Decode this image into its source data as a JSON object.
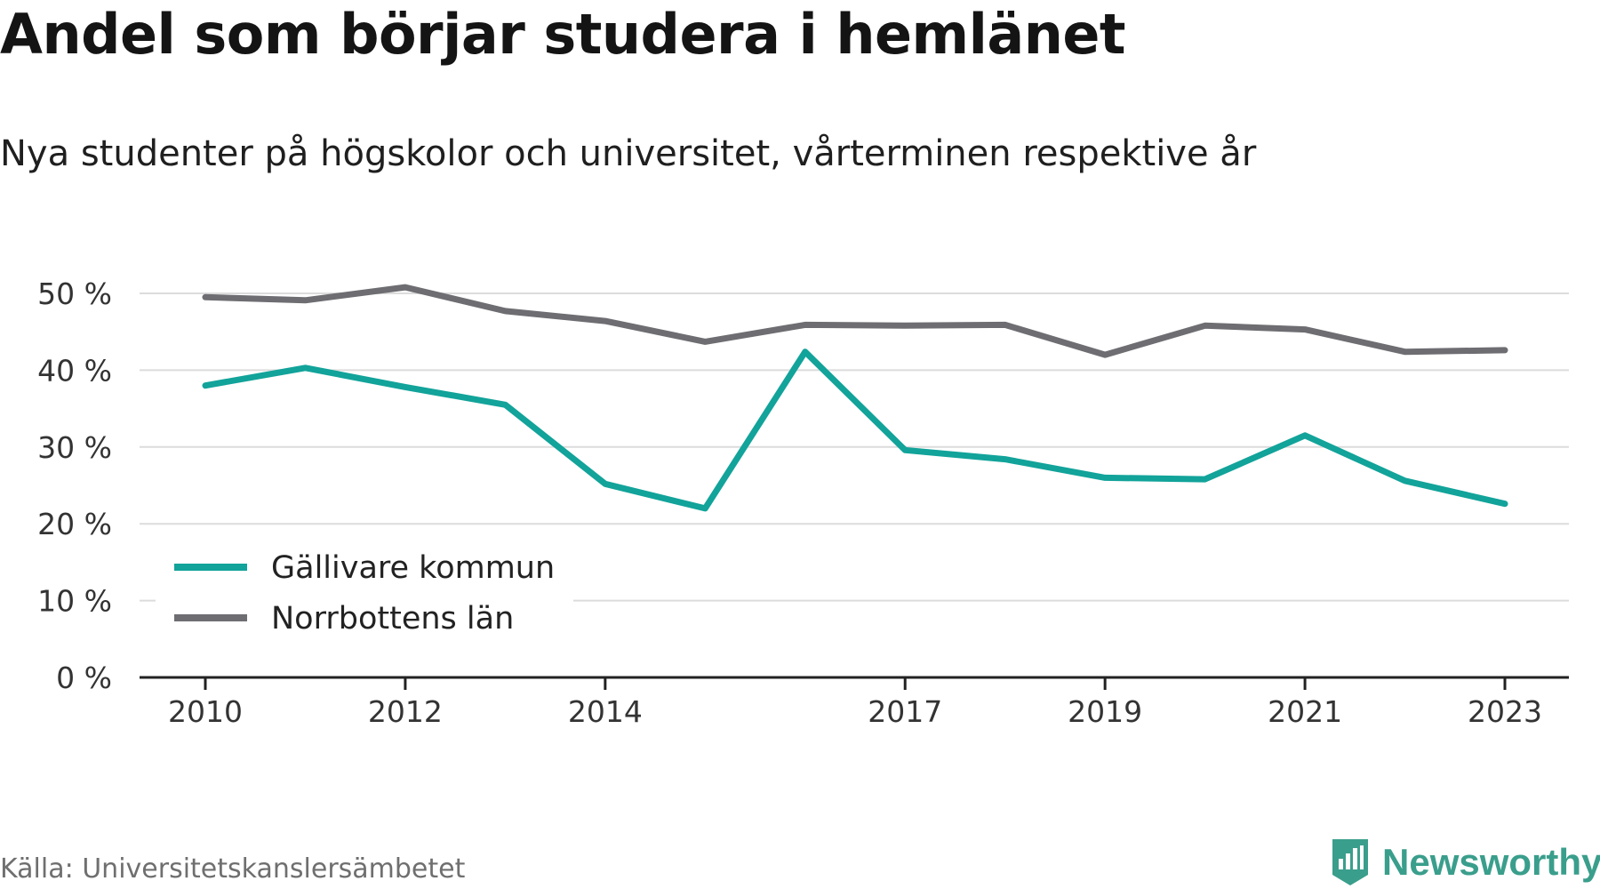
{
  "title": "Andel som börjar studera i hemlänet",
  "subtitle": "Nya studenter på högskolor och universitet, vårterminen respektive år",
  "source": "Källa: Universitetskanslersämbetet",
  "brand": "Newsworthy",
  "colors": {
    "accent": "#12a39a",
    "secondary": "#6e6d72",
    "brand": "#3a9e8c",
    "grid": "#dcdcdc",
    "axis": "#222222"
  },
  "chart_data": {
    "type": "line",
    "x": [
      2010,
      2011,
      2012,
      2013,
      2014,
      2015,
      2016,
      2017,
      2018,
      2019,
      2020,
      2021,
      2022,
      2023
    ],
    "x_tick_labels": [
      "2010",
      "2012",
      "2014",
      "2017",
      "2019",
      "2021",
      "2023"
    ],
    "y_tick_labels": [
      "0 %",
      "10 %",
      "20 %",
      "30 %",
      "40 %",
      "50 %"
    ],
    "ylim": [
      0,
      50
    ],
    "grid": true,
    "legend_position": "bottom-left",
    "series": [
      {
        "name": "Gällivare kommun",
        "color": "#12a39a",
        "values": [
          38.0,
          40.3,
          37.8,
          35.5,
          25.2,
          22.0,
          42.4,
          29.6,
          28.4,
          26.0,
          25.8,
          31.5,
          25.6,
          22.6
        ]
      },
      {
        "name": "Norrbottens län",
        "color": "#6e6d72",
        "values": [
          49.5,
          49.1,
          50.8,
          47.7,
          46.4,
          43.7,
          45.9,
          45.8,
          45.9,
          42.0,
          45.8,
          45.3,
          42.4,
          42.6
        ]
      }
    ]
  }
}
